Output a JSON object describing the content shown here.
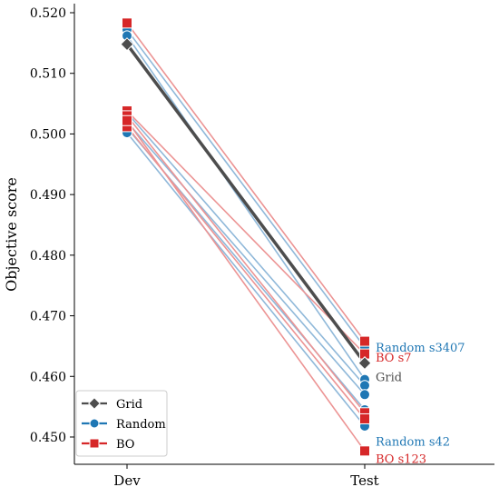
{
  "chart_data": {
    "type": "line",
    "categories": [
      "Dev",
      "Test"
    ],
    "ylabel": "Objective score",
    "ylim": [
      0.4455,
      0.5215
    ],
    "yticks": [
      0.45,
      0.46,
      0.47,
      0.48,
      0.49,
      0.5,
      0.51,
      0.52
    ],
    "grid": false,
    "legend": {
      "position": "lower-left",
      "entries": [
        {
          "name": "Grid",
          "color": "#4d4d4d",
          "marker": "diamond"
        },
        {
          "name": "Random",
          "color": "#1f77b4",
          "marker": "circle"
        },
        {
          "name": "BO",
          "color": "#d62728",
          "marker": "square"
        }
      ]
    },
    "series": [
      {
        "name": "Grid",
        "group": "Grid",
        "values": [
          0.5148,
          0.4622
        ]
      },
      {
        "name": "Random s3407",
        "group": "Random",
        "values": [
          0.5172,
          0.4648
        ]
      },
      {
        "name": "",
        "group": "Random",
        "values": [
          0.5162,
          0.4595
        ]
      },
      {
        "name": "",
        "group": "Random",
        "values": [
          0.5035,
          0.4585
        ]
      },
      {
        "name": "",
        "group": "Random",
        "values": [
          0.502,
          0.457
        ]
      },
      {
        "name": "",
        "group": "Random",
        "values": [
          0.501,
          0.4545
        ]
      },
      {
        "name": "Random s42",
        "group": "Random",
        "values": [
          0.5002,
          0.4518
        ]
      },
      {
        "name": "BO s7",
        "group": "BO",
        "values": [
          0.5183,
          0.4658
        ]
      },
      {
        "name": "",
        "group": "BO",
        "values": [
          0.5038,
          0.4637
        ]
      },
      {
        "name": "",
        "group": "BO",
        "values": [
          0.503,
          0.454
        ]
      },
      {
        "name": "",
        "group": "BO",
        "values": [
          0.5012,
          0.453
        ]
      },
      {
        "name": "BO s123",
        "group": "BO",
        "values": [
          0.5022,
          0.4477
        ]
      }
    ],
    "annotations": [
      {
        "text": "Random s3407",
        "x": "Test",
        "y": 0.4648,
        "color": "#1f77b4"
      },
      {
        "text": "BO s7",
        "x": "Test",
        "y": 0.4632,
        "color": "#d62728"
      },
      {
        "text": "Grid",
        "x": "Test",
        "y": 0.46,
        "color": "#4d4d4d"
      },
      {
        "text": "Random s42",
        "x": "Test",
        "y": 0.4493,
        "color": "#1f77b4"
      },
      {
        "text": "BO s123",
        "x": "Test",
        "y": 0.4465,
        "color": "#d62728"
      }
    ]
  }
}
